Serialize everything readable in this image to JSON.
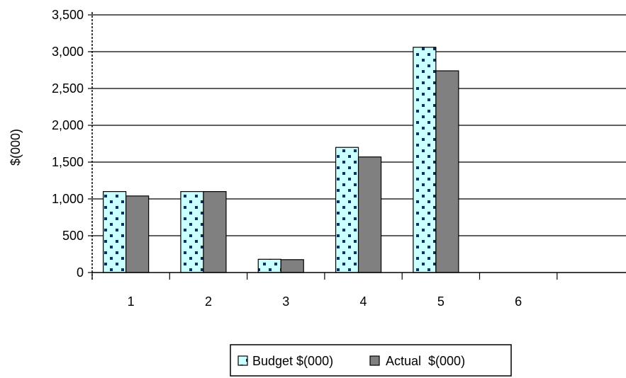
{
  "chart_data": {
    "type": "bar",
    "categories": [
      "1",
      "2",
      "3",
      "4",
      "5",
      "6"
    ],
    "series": [
      {
        "name": "Budget $(000)",
        "values": [
          1100,
          1100,
          180,
          1700,
          3060,
          0
        ],
        "color": "#ccffff",
        "pattern": "dots",
        "dot_color": "#003366"
      },
      {
        "name": "Actual  $(000)",
        "values": [
          1040,
          1100,
          175,
          1570,
          2740,
          0
        ],
        "color": "#808080",
        "pattern": "solid"
      }
    ],
    "title": "",
    "xlabel": "",
    "ylabel": "$(000)",
    "ylim": [
      0,
      3500
    ],
    "yticks": [
      0,
      500,
      1000,
      1500,
      2000,
      2500,
      3000,
      3500
    ],
    "ytick_labels": [
      "0",
      "500",
      "1,000",
      "1,500",
      "2,000",
      "2,500",
      "3,000",
      "3,500"
    ],
    "grid": true,
    "legend_position": "bottom"
  }
}
